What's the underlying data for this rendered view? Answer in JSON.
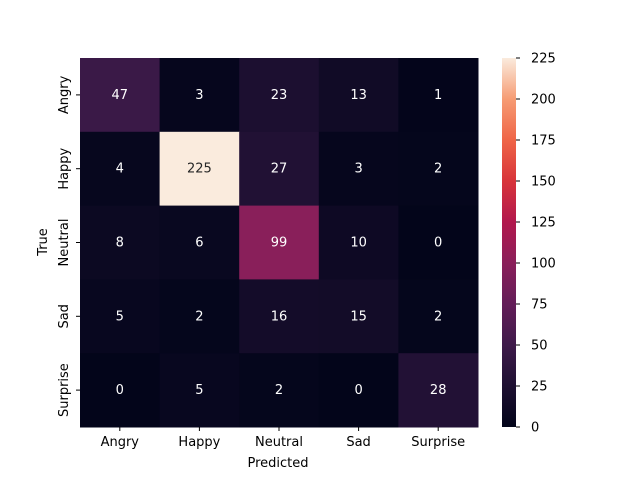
{
  "chart_data": {
    "type": "heatmap",
    "title": "",
    "xlabel": "Predicted",
    "ylabel": "True",
    "x_categories": [
      "Angry",
      "Happy",
      "Neutral",
      "Sad",
      "Surprise"
    ],
    "y_categories": [
      "Angry",
      "Happy",
      "Neutral",
      "Sad",
      "Surprise"
    ],
    "values": [
      [
        47,
        3,
        23,
        13,
        1
      ],
      [
        4,
        225,
        27,
        3,
        2
      ],
      [
        8,
        6,
        99,
        10,
        0
      ],
      [
        5,
        2,
        16,
        15,
        2
      ],
      [
        0,
        5,
        2,
        0,
        28
      ]
    ],
    "colorbar": {
      "min": 0,
      "max": 225,
      "ticks": [
        0,
        25,
        50,
        75,
        100,
        125,
        150,
        175,
        200,
        225
      ],
      "colormap": "rocket"
    },
    "annotations": true,
    "grid": false
  }
}
